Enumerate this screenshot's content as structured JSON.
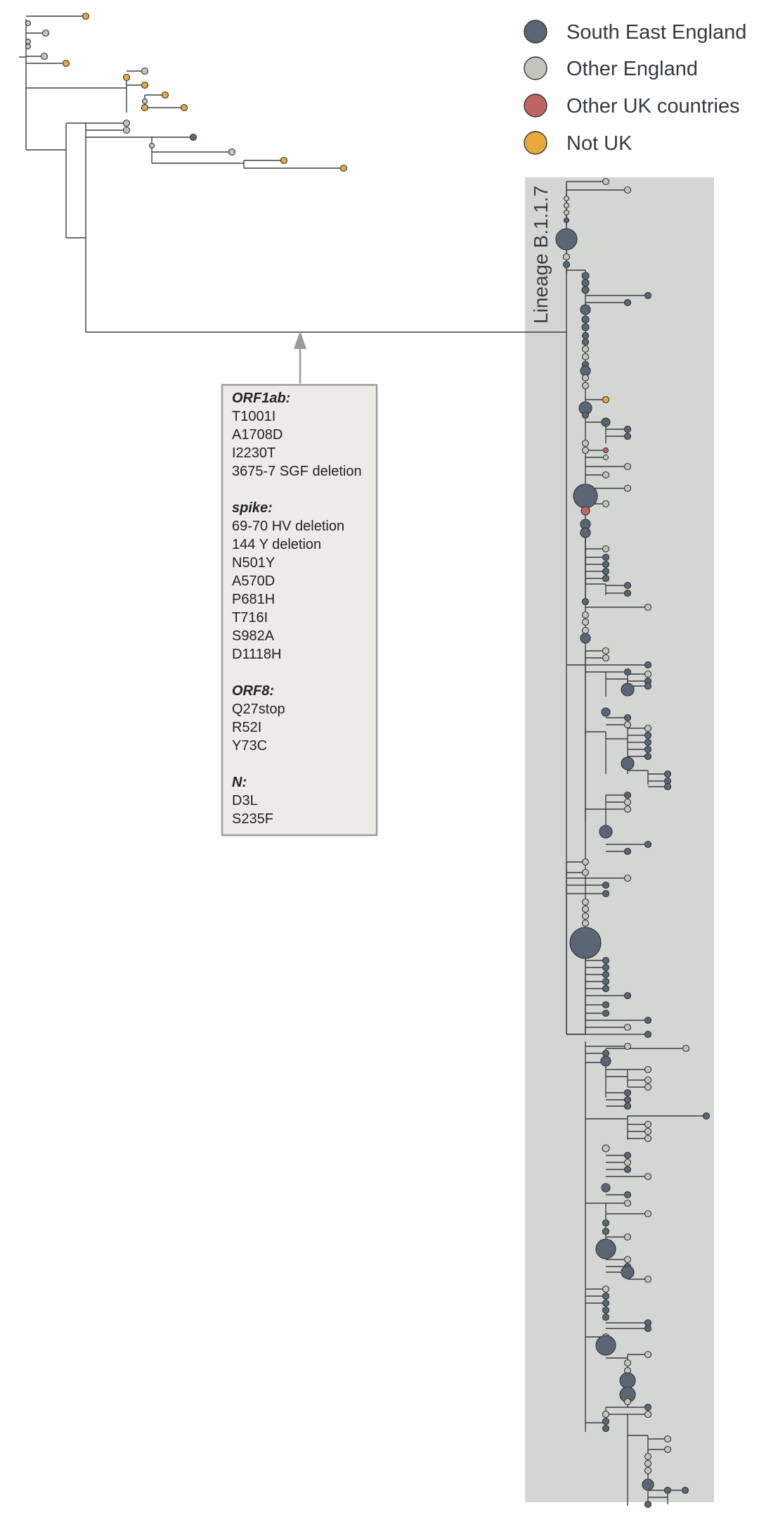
{
  "legend": [
    {
      "label": "South East England",
      "color": "#5b6675"
    },
    {
      "label": "Other England",
      "color": "#c4c6bb"
    },
    {
      "label": "Other UK countries",
      "color": "#bf6561"
    },
    {
      "label": "Not UK",
      "color": "#e8a93c"
    }
  ],
  "lineage_label": "Lineage B.1.1.7",
  "lineage_panel_color": "#d4d6d3",
  "mutations": [
    {
      "gene": "ORF1ab:",
      "changes": [
        "T1001I",
        "A1708D",
        "I2230T",
        "3675-7 SGF deletion"
      ]
    },
    {
      "gene": "spike:",
      "changes": [
        "69-70 HV deletion",
        "144 Y deletion",
        "N501Y",
        "A570D",
        "P681H",
        "T716I",
        "S982A",
        "D1118H"
      ]
    },
    {
      "gene": "ORF8:",
      "changes": [
        "Q27stop",
        "R52I",
        "Y73C"
      ]
    },
    {
      "gene": "N:",
      "changes": [
        "D3L",
        "S235F"
      ]
    }
  ]
}
